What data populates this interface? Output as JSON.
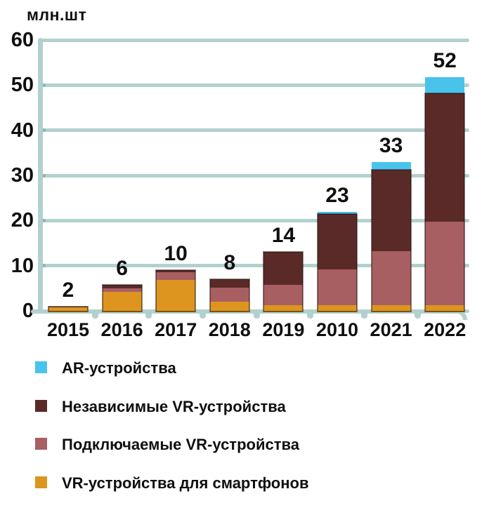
{
  "chart_data": {
    "type": "bar",
    "stacked": true,
    "title": "",
    "ylabel": "млн.шт",
    "xlabel": "",
    "categories": [
      "2015",
      "2016",
      "2017",
      "2018",
      "2019",
      "2010",
      "2021",
      "2022"
    ],
    "series": [
      {
        "name": "VR-устройства для смартфонов",
        "color": "#dd951f",
        "values": [
          1.2,
          4.5,
          7.2,
          2.3,
          1.5,
          1.5,
          1.5,
          1.5
        ]
      },
      {
        "name": "Подключаемые VR-устройства",
        "color": "#a85f62",
        "values": [
          0,
          0.8,
          1.7,
          3.2,
          4.5,
          8.0,
          12.0,
          18.5
        ]
      },
      {
        "name": "Независимые VR-устройства",
        "color": "#5a2a28",
        "values": [
          0.1,
          0.7,
          0.5,
          1.8,
          7.3,
          12.3,
          18.0,
          28.5
        ]
      },
      {
        "name": "AR-устройства",
        "color": "#49c3ec",
        "values": [
          0,
          0,
          0,
          0,
          0,
          0.5,
          1.8,
          3.5
        ]
      }
    ],
    "total_labels": [
      "2",
      "6",
      "10",
      "8",
      "14",
      "23",
      "33",
      "52"
    ],
    "y_ticks": [
      0,
      10,
      20,
      30,
      40,
      50,
      60
    ],
    "ylim": [
      0,
      60
    ],
    "grid": true,
    "legend_position": "bottom"
  },
  "legend": {
    "items": [
      {
        "label": "AR-устройства",
        "color": "#49c3ec"
      },
      {
        "label": "Независимые VR-устройства",
        "color": "#5a2a28"
      },
      {
        "label": "Подключаемые VR-устройства",
        "color": "#a85f62"
      },
      {
        "label": "VR-устройства для смартфонов",
        "color": "#dd951f"
      }
    ]
  },
  "colors": {
    "grid": "#b2d1ce",
    "axis": "#b2d1ce",
    "axis_dot": "#8ab5b0",
    "text": "#0f0f0f"
  }
}
